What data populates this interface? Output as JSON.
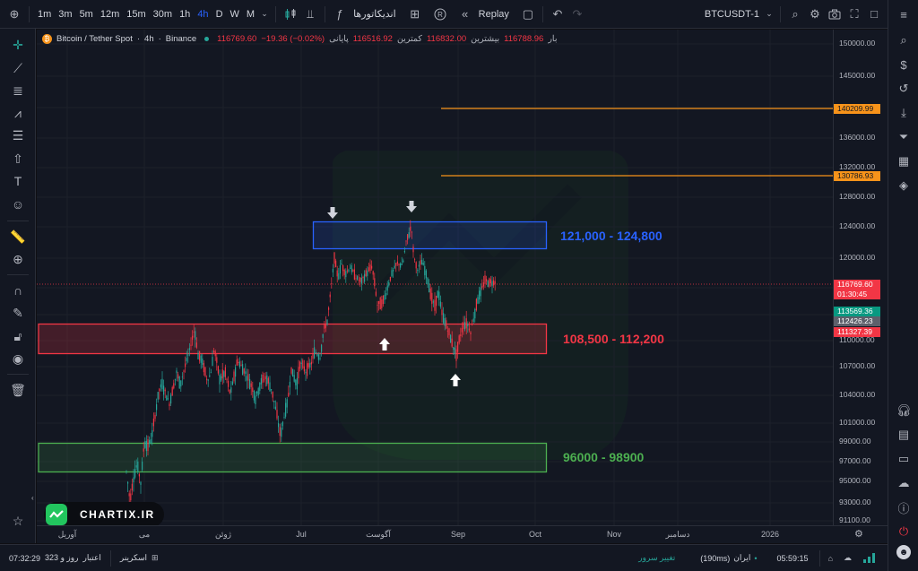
{
  "toolbar": {
    "intervals": [
      "1m",
      "3m",
      "5m",
      "12m",
      "15m",
      "30m",
      "1h",
      "4h",
      "D",
      "W",
      "M"
    ],
    "active_interval": "4h",
    "indicators_label": "اندیکاتورها",
    "replay_label": "Replay",
    "symbol": "BTCUSDT-1"
  },
  "legend": {
    "title": "Bitcoin / Tether Spot",
    "interval": "4h",
    "exchange": "Binance",
    "bar_label": "بار",
    "bar_value": "116788.96",
    "high_label": "بیشترین",
    "high_value": "116832.00",
    "low_label": "کمترین",
    "low_value": "116516.92",
    "close_label": "پایانی",
    "close_value": "116769.60",
    "change_value": "−19.36 (−0.02%)"
  },
  "chart_data": {
    "type": "candlestick",
    "symbol": "BTCUSDT",
    "interval": "4h",
    "y_ticks": [
      "150000.00",
      "145000.00",
      "140000.00",
      "136000.00",
      "132000.00",
      "128000.00",
      "124000.00",
      "120000.00",
      "116000.00",
      "113000.00",
      "110000.00",
      "107000.00",
      "104000.00",
      "101000.00",
      "99000.00",
      "97000.00",
      "95000.00",
      "93000.00",
      "91100.00"
    ],
    "x_ticks": [
      "آوریل",
      "می",
      "ژوئن",
      "Jul",
      "آگوست",
      "Sep",
      "Oct",
      "Nov",
      "دسامبر",
      "2026"
    ],
    "zones": [
      {
        "label": "121,000 - 124,800",
        "low": 121000,
        "high": 124800,
        "color": "#2962ff"
      },
      {
        "label": "108,500 - 112,200",
        "low": 108500,
        "high": 112200,
        "color": "#f23645"
      },
      {
        "label": "96000 - 98900",
        "low": 96000,
        "high": 98900,
        "color": "#4caf50"
      }
    ],
    "horizontal_lines": [
      {
        "value": "140209.99",
        "color": "#f7931a"
      },
      {
        "value": "130786.93",
        "color": "#f7931a"
      }
    ],
    "price_labels": {
      "last": "116769.60",
      "countdown": "01:30:45",
      "label_green": "113569.36",
      "label_gray": "112426.23",
      "label_red": "111327.39"
    },
    "series_path": [
      [
        98.8,
        94500
      ],
      [
        100,
        96000
      ],
      [
        104,
        93200
      ],
      [
        108,
        95400
      ],
      [
        112,
        96800
      ],
      [
        116,
        94900
      ],
      [
        120,
        99000
      ],
      [
        124,
        98600
      ],
      [
        128,
        99400
      ],
      [
        132,
        101800
      ],
      [
        136,
        104400
      ],
      [
        140,
        105200
      ],
      [
        148,
        103100
      ],
      [
        156,
        106400
      ],
      [
        160,
        105100
      ],
      [
        170,
        108700
      ],
      [
        176,
        111400
      ],
      [
        180,
        108300
      ],
      [
        184,
        107800
      ],
      [
        190,
        105600
      ],
      [
        194,
        106200
      ],
      [
        198,
        109100
      ],
      [
        204,
        105700
      ],
      [
        210,
        106400
      ],
      [
        216,
        104100
      ],
      [
        224,
        107700
      ],
      [
        232,
        106500
      ],
      [
        240,
        104900
      ],
      [
        244,
        103700
      ],
      [
        250,
        105400
      ],
      [
        256,
        105900
      ],
      [
        262,
        104600
      ],
      [
        266,
        102800
      ],
      [
        272,
        99600
      ],
      [
        276,
        101800
      ],
      [
        280,
        103400
      ],
      [
        284,
        106700
      ],
      [
        290,
        105100
      ],
      [
        294,
        107500
      ],
      [
        300,
        106500
      ],
      [
        306,
        107300
      ],
      [
        310,
        108800
      ],
      [
        316,
        108100
      ],
      [
        320,
        111200
      ],
      [
        324,
        112200
      ],
      [
        328,
        115600
      ],
      [
        330,
        117800
      ],
      [
        332,
        120000
      ],
      [
        336,
        117400
      ],
      [
        340,
        119200
      ],
      [
        344,
        117900
      ],
      [
        350,
        118800
      ],
      [
        356,
        117400
      ],
      [
        362,
        116800
      ],
      [
        368,
        118000
      ],
      [
        374,
        118900
      ],
      [
        380,
        114100
      ],
      [
        386,
        114300
      ],
      [
        390,
        115600
      ],
      [
        396,
        117900
      ],
      [
        402,
        119300
      ],
      [
        408,
        119000
      ],
      [
        412,
        122000
      ],
      [
        418,
        124100
      ],
      [
        420,
        120900
      ],
      [
        424,
        118400
      ],
      [
        430,
        119600
      ],
      [
        436,
        117100
      ],
      [
        440,
        114900
      ],
      [
        444,
        113900
      ],
      [
        448,
        115600
      ],
      [
        452,
        113100
      ],
      [
        456,
        112000
      ],
      [
        460,
        110800
      ],
      [
        464,
        109500
      ],
      [
        468,
        108300
      ],
      [
        472,
        110400
      ],
      [
        476,
        111800
      ],
      [
        480,
        112000
      ],
      [
        484,
        111000
      ],
      [
        488,
        112900
      ],
      [
        492,
        114800
      ],
      [
        496,
        115700
      ],
      [
        500,
        117000
      ],
      [
        504,
        116700
      ],
      [
        508,
        116769
      ]
    ]
  },
  "watermark": {
    "brand": "CHARTIX.IR"
  },
  "bottom": {
    "credit_label": "اعتبار",
    "credit_value": "323 روز و",
    "screener_label": "اسکرینر",
    "time_left": "07:32:29",
    "server_label": "تغییر سرور",
    "region": "ایران",
    "latency": "(190ms)",
    "clock": "05:59:15"
  }
}
